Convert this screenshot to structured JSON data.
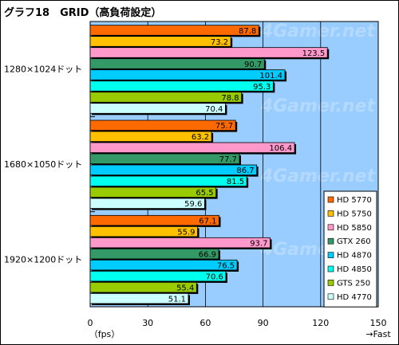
{
  "title": "グラフ18　GRID（高負荷設定）",
  "chart_data": {
    "type": "bar",
    "orientation": "horizontal",
    "title": "グラフ18　GRID（高負荷設定）",
    "categories": [
      "1280×1024ドット",
      "1680×1050ドット",
      "1920×1200ドット"
    ],
    "series": [
      {
        "name": "HD 5770",
        "color": "#ff6a00",
        "values": [
          87.8,
          75.7,
          67.1
        ]
      },
      {
        "name": "HD 5750",
        "color": "#ffc000",
        "values": [
          73.2,
          63.2,
          55.9
        ]
      },
      {
        "name": "HD 5850",
        "color": "#ff99cc",
        "values": [
          123.5,
          106.4,
          93.7
        ]
      },
      {
        "name": "GTX 260",
        "color": "#339966",
        "values": [
          90.7,
          77.7,
          66.9
        ]
      },
      {
        "name": "HD 4870",
        "color": "#00ccff",
        "values": [
          101.4,
          86.7,
          76.5
        ]
      },
      {
        "name": "HD 4850",
        "color": "#00ffee",
        "values": [
          95.3,
          81.5,
          70.6
        ]
      },
      {
        "name": "GTS 250",
        "color": "#99cc00",
        "values": [
          78.8,
          65.5,
          55.4
        ]
      },
      {
        "name": "HD 4770",
        "color": "#ccffff",
        "values": [
          70.4,
          59.6,
          51.1
        ]
      }
    ],
    "xlim": [
      0,
      150
    ],
    "xticks": [
      0,
      30,
      60,
      90,
      120,
      150
    ],
    "xlabel": "（fps）",
    "xlabel_right": "→Fast",
    "plot_background": "#99ccff",
    "grid": true,
    "legend_position": "right",
    "watermark": "4Gamer.net"
  }
}
